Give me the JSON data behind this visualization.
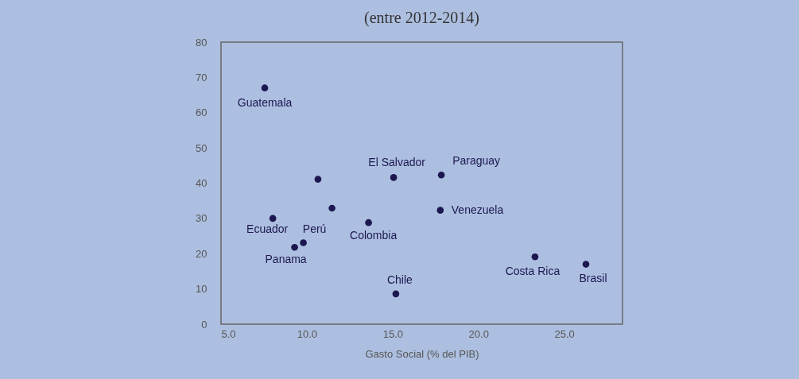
{
  "chart_data": {
    "type": "scatter",
    "title": "(entre 2012-2014)",
    "xlabel": "Gasto Social (% del PIB)",
    "x": [
      7.55,
      10.65,
      11.47,
      8.02,
      9.8,
      9.29,
      13.6,
      15.06,
      15.19,
      17.84,
      17.78,
      23.3,
      26.27
    ],
    "series": [
      {
        "color": "#1c1750",
        "values": [
          67.0,
          41.1,
          32.9,
          30.0,
          23.1,
          21.8,
          28.8,
          41.6,
          8.6,
          42.3,
          32.3,
          19.1,
          17.0
        ]
      }
    ],
    "annotations": [
      {
        "text": "Guatemala",
        "x": 7.55,
        "y": 67.0
      },
      {
        "text": "Ecuador",
        "x": 8.02,
        "y": 30.0
      },
      {
        "text": "Perú",
        "x": 9.8,
        "y": 23.1
      },
      {
        "text": "Panama",
        "x": 9.29,
        "y": 21.8
      },
      {
        "text": "Colombia",
        "x": 13.6,
        "y": 28.8
      },
      {
        "text": "El Salvador",
        "x": 15.06,
        "y": 41.6
      },
      {
        "text": "Chile",
        "x": 15.19,
        "y": 8.6
      },
      {
        "text": "Paraguay",
        "x": 17.84,
        "y": 42.3
      },
      {
        "text": "Venezuela",
        "x": 17.78,
        "y": 32.3
      },
      {
        "text": "Costa Rica",
        "x": 23.3,
        "y": 19.1
      },
      {
        "text": "Brasil",
        "x": 26.27,
        "y": 17.0
      }
    ],
    "xlim": [
      5,
      28.4
    ],
    "xticks": [
      {
        "value": 5,
        "label": "5.0"
      },
      {
        "value": 10,
        "label": "10.0"
      },
      {
        "value": 15,
        "label": "15.0"
      },
      {
        "value": 20,
        "label": "20.0"
      },
      {
        "value": 25,
        "label": "25.0"
      }
    ],
    "ylim": [
      0,
      80
    ],
    "yticks": [
      0,
      10,
      20,
      30,
      40,
      50,
      60,
      70,
      80
    ],
    "grid": false,
    "marker": "circle"
  }
}
